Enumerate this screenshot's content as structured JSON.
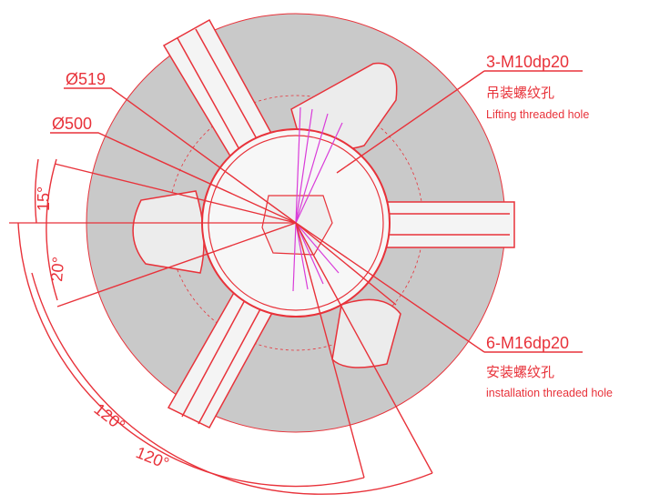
{
  "dimensions": {
    "dia_outer": "Ø519",
    "dia_inner": "Ø500",
    "angle_small": "15°",
    "angle_mid": "20°",
    "angle_big_inner": "120°",
    "angle_big_outer": "120°"
  },
  "callouts": {
    "lifting": {
      "spec": "3-M10dp20",
      "cn": "吊装螺纹孔",
      "en": "Lifting threaded hole"
    },
    "installation": {
      "spec": "6-M16dp20",
      "cn": "安装螺纹孔",
      "en": "installation threaded hole"
    }
  },
  "colors": {
    "dimension": "#e8323a",
    "body_fill": "#c9c9c9",
    "construction": "#d93cd9"
  }
}
